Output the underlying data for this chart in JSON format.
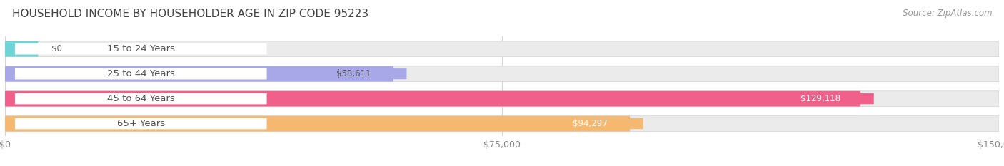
{
  "title": "HOUSEHOLD INCOME BY HOUSEHOLDER AGE IN ZIP CODE 95223",
  "source": "Source: ZipAtlas.com",
  "categories": [
    "15 to 24 Years",
    "25 to 44 Years",
    "45 to 64 Years",
    "65+ Years"
  ],
  "values": [
    0,
    58611,
    129118,
    94297
  ],
  "bar_colors": [
    "#6dd5d5",
    "#a8a8e8",
    "#f0608a",
    "#f5b870"
  ],
  "bar_bg_color": "#ebebeb",
  "value_label_colors": [
    "#555555",
    "#555555",
    "#ffffff",
    "#ffffff"
  ],
  "xlim": [
    0,
    150000
  ],
  "xticks": [
    0,
    75000,
    150000
  ],
  "xticklabels": [
    "$0",
    "$75,000",
    "$150,000"
  ],
  "figsize": [
    14.06,
    2.33
  ],
  "dpi": 100,
  "bar_height": 0.62,
  "background_color": "#ffffff",
  "title_fontsize": 11,
  "source_fontsize": 8.5,
  "label_fontsize": 8.5,
  "tick_fontsize": 9,
  "category_fontsize": 9.5
}
